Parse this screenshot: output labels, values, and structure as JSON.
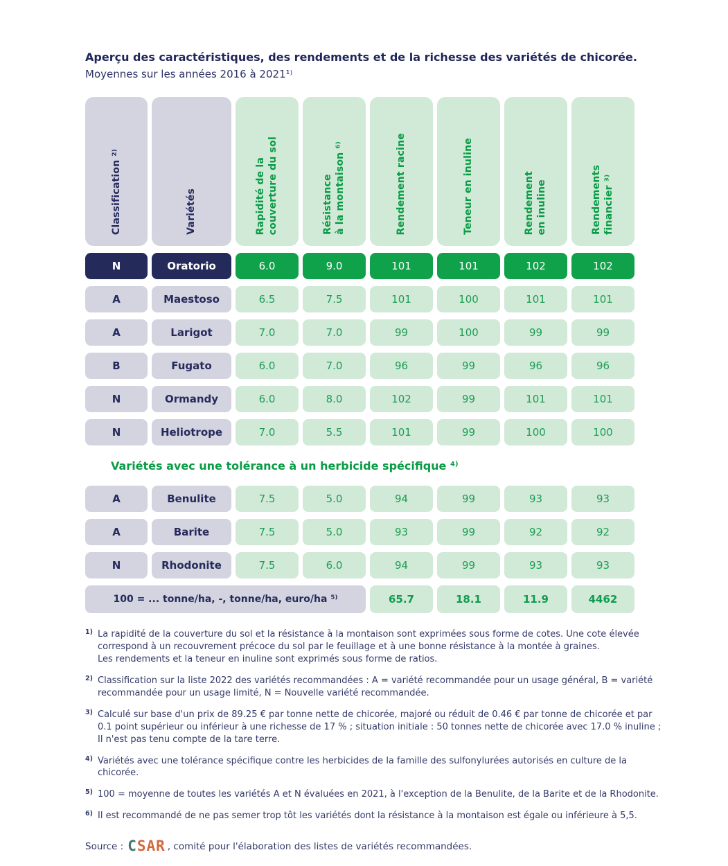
{
  "page": {
    "title": "Aperçu des caractéristiques, des rendements et de la richesse des variétés de chicorée.",
    "subtitle": "Moyennes sur les années 2016 à 2021¹⁾"
  },
  "table": {
    "headers": [
      "Classification ²⁾",
      "Variétés",
      "Rapidité de la\ncouverture du sol",
      "Résistance\nà la montaison ⁶⁾",
      "Rendement racine",
      "Teneur en inuline",
      "Rendement\nen inuline",
      "Rendements\nfinancier ³⁾"
    ],
    "rows": [
      {
        "classification": "N",
        "variety": "Oratorio",
        "values": [
          "6.0",
          "9.0",
          "101",
          "101",
          "102",
          "102"
        ],
        "highlight": true
      },
      {
        "classification": "A",
        "variety": "Maestoso",
        "values": [
          "6.5",
          "7.5",
          "101",
          "100",
          "101",
          "101"
        ]
      },
      {
        "classification": "A",
        "variety": "Larigot",
        "values": [
          "7.0",
          "7.0",
          "99",
          "100",
          "99",
          "99"
        ]
      },
      {
        "classification": "B",
        "variety": "Fugato",
        "values": [
          "6.0",
          "7.0",
          "96",
          "99",
          "96",
          "96"
        ]
      },
      {
        "classification": "N",
        "variety": "Ormandy",
        "values": [
          "6.0",
          "8.0",
          "102",
          "99",
          "101",
          "101"
        ]
      },
      {
        "classification": "N",
        "variety": "Heliotrope",
        "values": [
          "7.0",
          "5.5",
          "101",
          "99",
          "100",
          "100"
        ]
      }
    ],
    "section_title": "Variétés avec une tolérance à un herbicide spécifique ⁴⁾",
    "herbicide_rows": [
      {
        "classification": "A",
        "variety": "Benulite",
        "values": [
          "7.5",
          "5.0",
          "94",
          "99",
          "93",
          "93"
        ]
      },
      {
        "classification": "A",
        "variety": "Barite",
        "values": [
          "7.5",
          "5.0",
          "93",
          "99",
          "92",
          "92"
        ]
      },
      {
        "classification": "N",
        "variety": "Rhodonite",
        "values": [
          "7.5",
          "6.0",
          "94",
          "99",
          "93",
          "93"
        ]
      }
    ],
    "footer": {
      "label": "100 = ... tonne/ha, -, tonne/ha, euro/ha ⁵⁾",
      "values": [
        "65.7",
        "18.1",
        "11.9",
        "4462"
      ]
    }
  },
  "footnotes": [
    {
      "marker": "1)",
      "text": "La rapidité de la couverture du sol et la résistance à la montaison sont exprimées sous forme de cotes. Une cote élevée\ncorrespond à un recouvrement précoce du sol par le feuillage et à une bonne résistance à la montée à graines.\nLes rendements et la teneur en inuline sont exprimés sous forme de ratios."
    },
    {
      "marker": "2)",
      "text": "Classification sur la liste 2022 des variétés recommandées : A = variété recommandée pour un usage général, B = variété\nrecommandée pour un usage limité, N = Nouvelle variété recommandée."
    },
    {
      "marker": "3)",
      "text": "Calculé sur base d'un prix de 89.25 € par tonne nette de chicorée, majoré ou réduit de 0.46 € par tonne de chicorée et par\n0.1 point supérieur ou inférieur à une richesse de 17 % ; situation initiale : 50 tonnes nette de chicorée avec 17.0 % inuline ;\nIl n'est pas tenu compte de la tare terre."
    },
    {
      "marker": "4)",
      "text": "Variétés avec une tolérance spécifique contre les herbicides de la famille des sulfonylurées autorisés en culture de la chicorée."
    },
    {
      "marker": "5)",
      "text": "100 = moyenne de toutes les variétés A et N évaluées en 2021, à l'exception de la Benulite, de la Barite et de la Rhodonite."
    },
    {
      "marker": "6)",
      "text": "Il est recommandé de ne pas semer trop tôt les variétés dont la résistance à la montaison est égale ou inférieure à 5,5."
    }
  ],
  "source": {
    "prefix": "Source : ",
    "logo_c": "C",
    "logo_sar": "SAR",
    "suffix": ", comité pour l'élaboration des listes de variétés recommandées."
  },
  "colors": {
    "navy": "#262b5c",
    "gray_cell": "#d3d4e0",
    "light_green_cell": "#d1e9d7",
    "bright_green_highlight": "#10a14b",
    "green_text": "#0a9b46",
    "logo_teal": "#41796f",
    "logo_orange": "#d3683a"
  }
}
